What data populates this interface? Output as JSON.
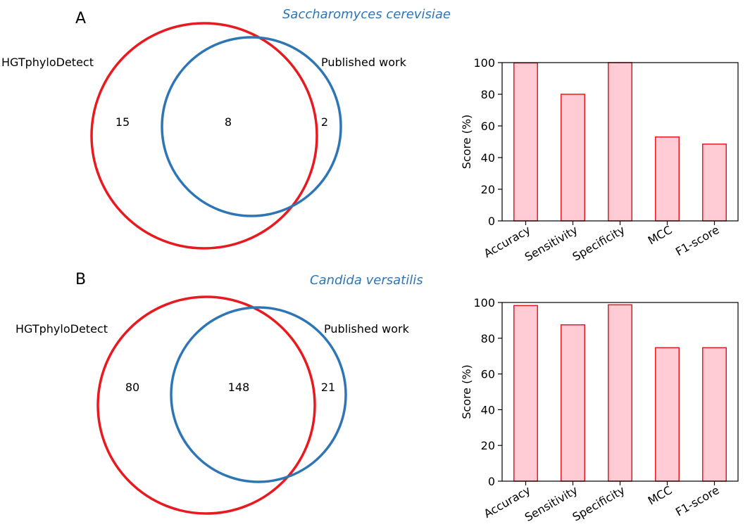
{
  "panels": [
    {
      "letter": "A",
      "species": "Saccharomyces cerevisiae",
      "venn": {
        "left_label": "HGTphyloDetect",
        "right_label": "Published work",
        "left_only": "15",
        "overlap": "8",
        "right_only": "2"
      }
    },
    {
      "letter": "B",
      "species": "Candida versatilis",
      "venn": {
        "left_label": "HGTphyloDetect",
        "right_label": "Published work",
        "left_only": "80",
        "overlap": "148",
        "right_only": "21"
      }
    }
  ],
  "colors": {
    "left_circle": "#e8191f",
    "right_circle": "#2e75b6",
    "species_text": "#2e75b6",
    "bar_fill": "#ffccd5",
    "bar_stroke": "#e8191f"
  },
  "chart_data": [
    {
      "type": "bar",
      "categories": [
        "Accuracy",
        "Sensitivity",
        "Specificity",
        "MCC",
        "F1-score"
      ],
      "values": [
        99.8,
        80,
        100,
        53,
        48.5
      ],
      "title": "",
      "xlabel": "",
      "ylabel": "Score (%)",
      "ylim": [
        0,
        100
      ],
      "yticks": [
        "0",
        "20",
        "40",
        "60",
        "80",
        "100"
      ],
      "grid": false,
      "legend": "none"
    },
    {
      "type": "bar",
      "categories": [
        "Accuracy",
        "Sensitivity",
        "Specificity",
        "MCC",
        "F1-score"
      ],
      "values": [
        98.3,
        87.5,
        98.7,
        74.7,
        74.7
      ],
      "title": "",
      "xlabel": "",
      "ylabel": "Score (%)",
      "ylim": [
        0,
        100
      ],
      "yticks": [
        "0",
        "20",
        "40",
        "60",
        "80",
        "100"
      ],
      "grid": false,
      "legend": "none"
    }
  ]
}
